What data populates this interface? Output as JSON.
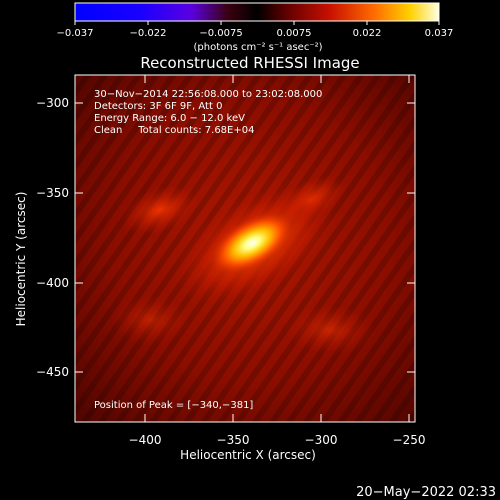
{
  "colorbar": {
    "tick_labels": [
      "−0.037",
      "−0.022",
      "−0.0075",
      "0.0075",
      "0.022",
      "0.037"
    ],
    "unit_label": "(photons cm⁻² s⁻¹ asec⁻²)"
  },
  "plot": {
    "title": "Reconstructed RHESSI Image",
    "info_lines": [
      "30−Nov−2014 22:56:08.000 to 23:02:08.000",
      "Detectors: 3F 6F 9F, Att 0",
      "Energy Range: 6.0 − 12.0 keV",
      "Clean     Total counts: 7.68E+04"
    ],
    "peak_label": "Position of Peak = [−340,−381]",
    "xlabel": "Heliocentric X (arcsec)",
    "ylabel": "Heliocentric Y (arcsec)",
    "x_ticks": [
      "−400",
      "−350",
      "−300",
      "−250"
    ],
    "y_ticks": [
      "−300",
      "−350",
      "−400",
      "−450"
    ]
  },
  "timestamp": "20−May−2022 02:33"
}
